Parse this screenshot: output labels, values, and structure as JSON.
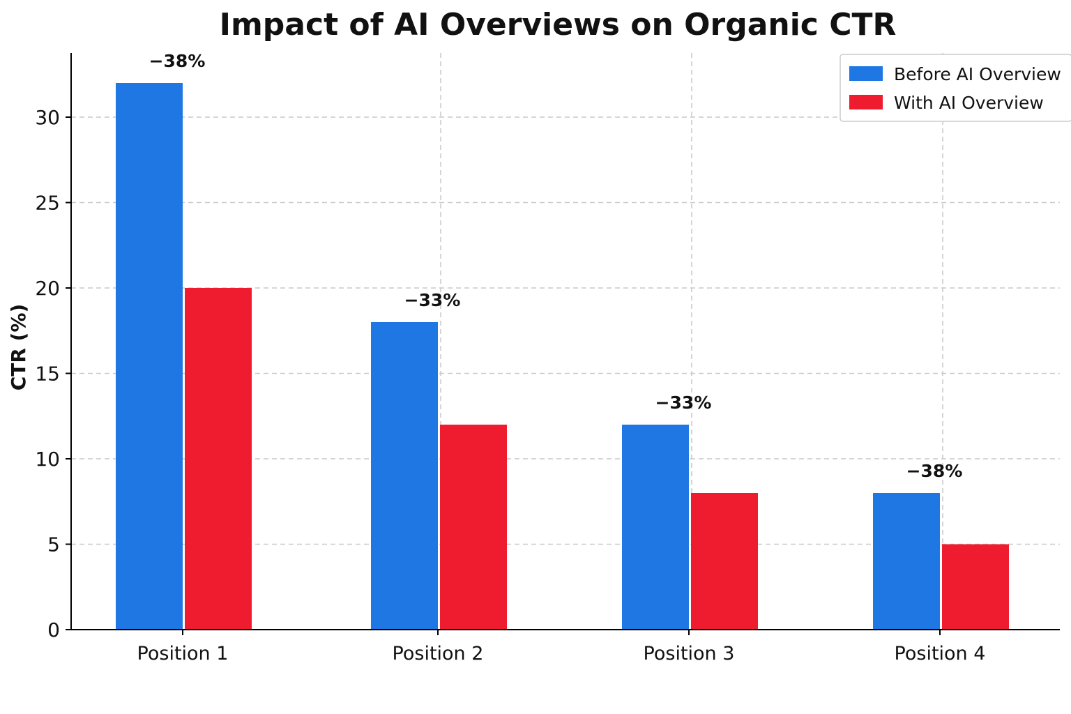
{
  "chart_data": {
    "type": "bar",
    "title": "Impact of AI Overviews on Organic CTR",
    "xlabel": "",
    "ylabel": "CTR (%)",
    "categories": [
      "Position 1",
      "Position 2",
      "Position 3",
      "Position 4"
    ],
    "series": [
      {
        "name": "Before AI Overview",
        "color": "#1f77e4",
        "values": [
          32,
          18,
          12,
          8
        ]
      },
      {
        "name": "With AI Overview",
        "color": "#ee1c2e",
        "values": [
          20,
          12,
          8,
          5
        ]
      }
    ],
    "annotations": [
      "−38%",
      "−33%",
      "−33%",
      "−38%"
    ],
    "yticks": [
      0,
      5,
      10,
      15,
      20,
      25,
      30
    ],
    "ylim": [
      0,
      34
    ],
    "grid": true,
    "legend_position": "top-right"
  }
}
